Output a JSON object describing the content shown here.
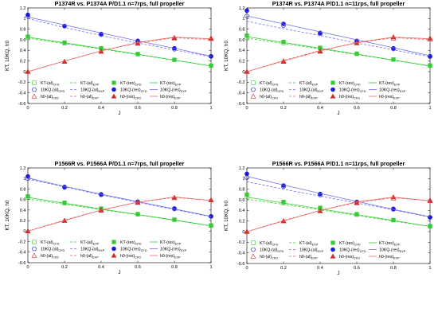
{
  "figure": {
    "background": "#ffffff"
  },
  "colors": {
    "kt": "#33cc33",
    "kq": "#1a1adc",
    "h0": "#d42a2a",
    "kq_line": "#6e6ef0",
    "h0_line": "#ee6666"
  },
  "chart_data": [
    {
      "type": "line",
      "title": "P1374R vs. P1374A P/D1.1 n=7rps, full propeller",
      "xlabel": "J",
      "ylabel": "KT, 10KQ, h0",
      "xlim": [
        0,
        1
      ],
      "ylim": [
        -0.6,
        1.2
      ],
      "xticks": [
        "0",
        "0.2",
        "0.4",
        "0.6",
        "0.8",
        "1"
      ],
      "yticks": [
        "-0.6",
        "-0.4",
        "-0.2",
        "0",
        "0.2",
        "0.4",
        "0.6",
        "0.8",
        "1",
        "1.2"
      ],
      "grid": false,
      "legend_position": "bottom",
      "x": [
        0,
        0.2,
        0.4,
        0.6,
        0.8,
        1.0
      ],
      "series": [
        {
          "name": "KT-(al)CFD",
          "group": "kt",
          "style": "open-square",
          "values": [
            0.64,
            0.537,
            0.437,
            0.33,
            0.223,
            0.113
          ]
        },
        {
          "name": "KT-(al)EXP",
          "group": "kt",
          "style": "dashed",
          "values": [
            0.63,
            0.53,
            0.428,
            0.322,
            0.214,
            0.106
          ]
        },
        {
          "name": "KT-(res)CFD",
          "group": "kt",
          "style": "filled-square",
          "values": [
            0.66,
            0.547,
            0.44,
            0.333,
            0.223,
            0.112
          ]
        },
        {
          "name": "KT-(res)EXP",
          "group": "kt",
          "style": "solid",
          "values": [
            0.65,
            0.543,
            0.436,
            0.328,
            0.218,
            0.107
          ]
        },
        {
          "name": "10KQ-(al)CFD",
          "group": "kq",
          "style": "open-circle",
          "values": [
            1.04,
            0.857,
            0.697,
            0.567,
            0.423,
            0.287
          ]
        },
        {
          "name": "10KQ-(al)EXP",
          "group": "kq",
          "style": "dashed",
          "values": [
            1.0,
            0.83,
            0.68,
            0.54,
            0.41,
            0.28
          ]
        },
        {
          "name": "10KQ-(res)CFD",
          "group": "kq",
          "style": "filled-circle",
          "values": [
            1.07,
            0.86,
            0.71,
            0.58,
            0.44,
            0.29
          ]
        },
        {
          "name": "10KQ-(res)EXP",
          "group": "kq",
          "style": "solid",
          "values": [
            1.03,
            0.88,
            0.73,
            0.58,
            0.44,
            0.29
          ]
        },
        {
          "name": "h0-(al)CFD",
          "group": "h0",
          "style": "open-triangle",
          "values": [
            0.0,
            0.19,
            0.38,
            0.53,
            0.63,
            0.62
          ]
        },
        {
          "name": "h0-(al)EXP",
          "group": "h0",
          "style": "dashed",
          "values": [
            0.0,
            0.2,
            0.39,
            0.54,
            0.64,
            0.6
          ]
        },
        {
          "name": "h0-(res)CFD",
          "group": "h0",
          "style": "filled-triangle",
          "values": [
            0.0,
            0.19,
            0.38,
            0.54,
            0.64,
            0.63
          ]
        },
        {
          "name": "h0-(res)EXP",
          "group": "h0",
          "style": "solid",
          "values": [
            0.0,
            0.2,
            0.39,
            0.55,
            0.65,
            0.62
          ]
        }
      ]
    },
    {
      "type": "line",
      "title": "P1374R vs. P1374A P/D1.1 n=11rps, full propeller",
      "xlabel": "J",
      "ylabel": "KT, 10KQ, h0",
      "xlim": [
        0,
        1
      ],
      "ylim": [
        -0.6,
        1.2
      ],
      "xticks": [
        "0",
        "0.2",
        "0.4",
        "0.6",
        "0.8",
        "1"
      ],
      "yticks": [
        "-0.6",
        "-0.4",
        "-0.2",
        "0",
        "0.2",
        "0.4",
        "0.6",
        "0.8",
        "1",
        "1.2"
      ],
      "grid": false,
      "legend_position": "bottom",
      "x": [
        0,
        0.2,
        0.4,
        0.6,
        0.8,
        1.0
      ],
      "series": [
        {
          "name": "KT-(al)CFD",
          "group": "kt",
          "style": "open-square",
          "values": [
            0.64,
            0.54,
            0.44,
            0.335,
            0.226,
            0.116
          ]
        },
        {
          "name": "KT-(al)EXP",
          "group": "kt",
          "style": "dashed",
          "values": [
            0.63,
            0.53,
            0.428,
            0.322,
            0.214,
            0.106
          ]
        },
        {
          "name": "KT-(res)CFD",
          "group": "kt",
          "style": "filled-square",
          "values": [
            0.68,
            0.56,
            0.45,
            0.34,
            0.228,
            0.113
          ]
        },
        {
          "name": "KT-(res)EXP",
          "group": "kt",
          "style": "solid",
          "values": [
            0.66,
            0.55,
            0.44,
            0.33,
            0.22,
            0.108
          ]
        },
        {
          "name": "10KQ-(al)CFD",
          "group": "kq",
          "style": "open-circle",
          "values": [
            1.05,
            0.87,
            0.713,
            0.573,
            0.427,
            0.283
          ]
        },
        {
          "name": "10KQ-(al)EXP",
          "group": "kq",
          "style": "dashed",
          "values": [
            0.95,
            0.81,
            0.68,
            0.54,
            0.41,
            0.28
          ]
        },
        {
          "name": "10KQ-(res)CFD",
          "group": "kq",
          "style": "filled-circle",
          "values": [
            1.15,
            0.9,
            0.73,
            0.58,
            0.44,
            0.29
          ]
        },
        {
          "name": "10KQ-(res)EXP",
          "group": "kq",
          "style": "solid",
          "values": [
            1.05,
            0.9,
            0.75,
            0.6,
            0.45,
            0.3
          ]
        },
        {
          "name": "h0-(al)CFD",
          "group": "h0",
          "style": "open-triangle",
          "values": [
            0.0,
            0.2,
            0.39,
            0.54,
            0.63,
            0.61
          ]
        },
        {
          "name": "h0-(al)EXP",
          "group": "h0",
          "style": "dashed",
          "values": [
            0.0,
            0.21,
            0.4,
            0.54,
            0.64,
            0.6
          ]
        },
        {
          "name": "h0-(res)CFD",
          "group": "h0",
          "style": "filled-triangle",
          "values": [
            0.0,
            0.19,
            0.38,
            0.54,
            0.65,
            0.63
          ]
        },
        {
          "name": "h0-(res)EXP",
          "group": "h0",
          "style": "solid",
          "values": [
            0.0,
            0.2,
            0.39,
            0.55,
            0.65,
            0.62
          ]
        }
      ]
    },
    {
      "type": "line",
      "title": "P1566R vs. P1566A P/D1.1 n=7rps, full propeller",
      "xlabel": "J",
      "ylabel": "KT, 10KQ, h0",
      "xlim": [
        0,
        1
      ],
      "ylim": [
        -0.6,
        1.2
      ],
      "xticks": [
        "0",
        "0.2",
        "0.4",
        "0.6",
        "0.8",
        "1"
      ],
      "yticks": [
        "-0.6",
        "-0.4",
        "-0.2",
        "0",
        "0.2",
        "0.4",
        "0.6",
        "0.8",
        "1",
        "1.2"
      ],
      "grid": false,
      "legend_position": "bottom",
      "x": [
        0,
        0.2,
        0.4,
        0.6,
        0.8,
        1.0
      ],
      "series": [
        {
          "name": "KT-(al)CFD",
          "group": "kt",
          "style": "open-square",
          "values": [
            0.64,
            0.53,
            0.42,
            0.32,
            0.215,
            0.105
          ]
        },
        {
          "name": "KT-(al)EXP",
          "group": "kt",
          "style": "dashed",
          "values": [
            0.61,
            0.51,
            0.41,
            0.31,
            0.205,
            0.1
          ]
        },
        {
          "name": "KT-(res)CFD",
          "group": "kt",
          "style": "filled-square",
          "values": [
            0.66,
            0.54,
            0.43,
            0.325,
            0.218,
            0.108
          ]
        },
        {
          "name": "KT-(res)EXP",
          "group": "kt",
          "style": "solid",
          "values": [
            0.64,
            0.53,
            0.42,
            0.315,
            0.21,
            0.102
          ]
        },
        {
          "name": "10KQ-(al)CFD",
          "group": "kq",
          "style": "open-circle",
          "values": [
            1.0,
            0.83,
            0.69,
            0.56,
            0.42,
            0.28
          ]
        },
        {
          "name": "10KQ-(al)EXP",
          "group": "kq",
          "style": "dashed",
          "values": [
            0.99,
            0.84,
            0.69,
            0.55,
            0.41,
            0.27
          ]
        },
        {
          "name": "10KQ-(res)CFD",
          "group": "kq",
          "style": "filled-circle",
          "values": [
            1.04,
            0.84,
            0.7,
            0.55,
            0.43,
            0.28
          ]
        },
        {
          "name": "10KQ-(res)EXP",
          "group": "kq",
          "style": "solid",
          "values": [
            1.01,
            0.85,
            0.7,
            0.56,
            0.42,
            0.28
          ]
        },
        {
          "name": "h0-(al)CFD",
          "group": "h0",
          "style": "open-triangle",
          "values": [
            0.0,
            0.2,
            0.39,
            0.54,
            0.63,
            0.59
          ]
        },
        {
          "name": "h0-(al)EXP",
          "group": "h0",
          "style": "dashed",
          "values": [
            0.0,
            0.21,
            0.4,
            0.55,
            0.64,
            0.58
          ]
        },
        {
          "name": "h0-(res)CFD",
          "group": "h0",
          "style": "filled-triangle",
          "values": [
            0.0,
            0.2,
            0.4,
            0.55,
            0.64,
            0.59
          ]
        },
        {
          "name": "h0-(res)EXP",
          "group": "h0",
          "style": "solid",
          "values": [
            0.0,
            0.2,
            0.4,
            0.55,
            0.65,
            0.58
          ]
        }
      ]
    },
    {
      "type": "line",
      "title": "P1566R vs. P1566A P/D1.1 n=11rps, full propeller",
      "xlabel": "J",
      "ylabel": "KT, 10KQ, h0",
      "xlim": [
        0,
        1
      ],
      "ylim": [
        -0.6,
        1.2
      ],
      "xticks": [
        "0",
        "0.2",
        "0.4",
        "0.6",
        "0.8",
        "1"
      ],
      "yticks": [
        "-0.6",
        "-0.4",
        "-0.2",
        "0",
        "0.2",
        "0.4",
        "0.6",
        "0.8",
        "1",
        "1.2"
      ],
      "grid": false,
      "legend_position": "bottom",
      "x": [
        0,
        0.2,
        0.4,
        0.6,
        0.8,
        1.0
      ],
      "series": [
        {
          "name": "KT-(al)CFD",
          "group": "kt",
          "style": "open-square",
          "values": [
            0.66,
            0.54,
            0.43,
            0.32,
            0.215,
            0.105
          ]
        },
        {
          "name": "KT-(al)EXP",
          "group": "kt",
          "style": "dashed",
          "values": [
            0.61,
            0.515,
            0.41,
            0.305,
            0.2,
            0.095
          ]
        },
        {
          "name": "KT-(res)CFD",
          "group": "kt",
          "style": "filled-square",
          "values": [
            0.7,
            0.56,
            0.45,
            0.33,
            0.22,
            0.1
          ]
        },
        {
          "name": "KT-(res)EXP",
          "group": "kt",
          "style": "solid",
          "values": [
            0.65,
            0.54,
            0.43,
            0.32,
            0.21,
            0.098
          ]
        },
        {
          "name": "10KQ-(al)CFD",
          "group": "kq",
          "style": "open-circle",
          "values": [
            1.02,
            0.85,
            0.69,
            0.56,
            0.42,
            0.27
          ]
        },
        {
          "name": "10KQ-(al)EXP",
          "group": "kq",
          "style": "dashed",
          "values": [
            0.94,
            0.8,
            0.67,
            0.54,
            0.41,
            0.27
          ]
        },
        {
          "name": "10KQ-(res)CFD",
          "group": "kq",
          "style": "filled-circle",
          "values": [
            1.09,
            0.87,
            0.71,
            0.56,
            0.43,
            0.27
          ]
        },
        {
          "name": "10KQ-(res)EXP",
          "group": "kq",
          "style": "solid",
          "values": [
            1.04,
            0.88,
            0.72,
            0.57,
            0.42,
            0.28
          ]
        },
        {
          "name": "h0-(al)CFD",
          "group": "h0",
          "style": "open-triangle",
          "values": [
            0.0,
            0.2,
            0.39,
            0.54,
            0.63,
            0.58
          ]
        },
        {
          "name": "h0-(al)EXP",
          "group": "h0",
          "style": "dashed",
          "values": [
            0.0,
            0.21,
            0.4,
            0.55,
            0.64,
            0.58
          ]
        },
        {
          "name": "h0-(res)CFD",
          "group": "h0",
          "style": "filled-triangle",
          "values": [
            0.0,
            0.2,
            0.39,
            0.55,
            0.65,
            0.59
          ]
        },
        {
          "name": "h0-(res)EXP",
          "group": "h0",
          "style": "solid",
          "values": [
            0.0,
            0.2,
            0.4,
            0.56,
            0.65,
            0.58
          ]
        }
      ]
    }
  ]
}
